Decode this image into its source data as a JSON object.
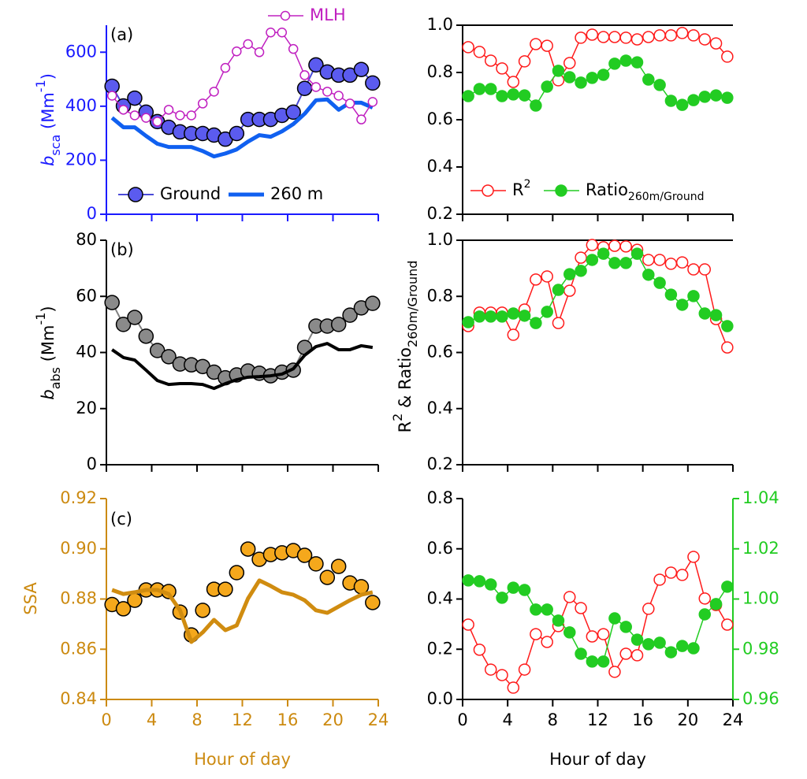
{
  "chart_data": [
    {
      "type": "line",
      "panel": "(a)",
      "axis_color": "#1a1aff",
      "xtick_labels": false,
      "x": [
        0.5,
        1.5,
        2.5,
        3.5,
        4.5,
        5.5,
        6.5,
        7.5,
        8.5,
        9.5,
        10.5,
        11.5,
        12.5,
        13.5,
        14.5,
        15.5,
        16.5,
        17.5,
        18.5,
        19.5,
        20.5,
        21.5,
        22.5,
        23.5
      ],
      "xlim": [
        0,
        24
      ],
      "xticks": [
        0,
        4,
        8,
        12,
        16,
        20,
        24
      ],
      "ylim": [
        0,
        700
      ],
      "yticks": [
        0,
        200,
        400,
        600
      ],
      "y_label": [
        {
          "text": "b",
          "style": "italic"
        },
        {
          "text": "sca",
          "style": "sub"
        },
        {
          "text": " (Mm"
        },
        {
          "text": "-1",
          "style": "sup"
        },
        {
          "text": ")"
        }
      ],
      "series": [
        {
          "name": "Ground",
          "color": "#4a4ad8",
          "marker": "filled",
          "marker_fill": "#5b5bef",
          "marker_edge": "#000000",
          "marker_size": 9,
          "line_width": 2,
          "values": [
            474,
            401,
            430,
            378,
            343,
            322,
            305,
            299,
            299,
            293,
            278,
            299,
            351,
            351,
            351,
            366,
            378,
            466,
            553,
            527,
            515,
            515,
            536,
            486
          ]
        },
        {
          "name": "260 m",
          "color": "#1060f0",
          "marker": null,
          "line_width": 5,
          "values": [
            357,
            322,
            322,
            290,
            261,
            249,
            249,
            249,
            234,
            214,
            225,
            240,
            269,
            293,
            287,
            307,
            334,
            372,
            422,
            425,
            387,
            413,
            413,
            395
          ]
        },
        {
          "name": "MLH",
          "color": "#c020c0",
          "label_color": "#c020c0",
          "marker": "open",
          "marker_fill": "#ffffff",
          "marker_edge": "#c020c0",
          "marker_size": 5.5,
          "line_width": 1.5,
          "values": [
            439,
            387,
            366,
            357,
            343,
            387,
            366,
            366,
            410,
            454,
            542,
            603,
            630,
            600,
            673,
            673,
            612,
            515,
            471,
            454,
            439,
            410,
            351,
            416
          ]
        }
      ]
    },
    {
      "type": "line",
      "panel": "(b)",
      "axis_color": "#000000",
      "xtick_labels": false,
      "x": [
        0.5,
        1.5,
        2.5,
        3.5,
        4.5,
        5.5,
        6.5,
        7.5,
        8.5,
        9.5,
        10.5,
        11.5,
        12.5,
        13.5,
        14.5,
        15.5,
        16.5,
        17.5,
        18.5,
        19.5,
        20.5,
        21.5,
        22.5,
        23.5
      ],
      "xlim": [
        0,
        24
      ],
      "xticks": [
        0,
        4,
        8,
        12,
        16,
        20,
        24
      ],
      "ylim": [
        0,
        80
      ],
      "yticks": [
        0,
        20,
        40,
        60,
        80
      ],
      "y_label": [
        {
          "text": "b",
          "style": "italic"
        },
        {
          "text": "abs",
          "style": "sub"
        },
        {
          "text": " (Mm"
        },
        {
          "text": "-1",
          "style": "sup"
        },
        {
          "text": ")"
        }
      ],
      "series": [
        {
          "color": "#808080",
          "marker": "filled",
          "marker_fill": "#8a8a8a",
          "marker_edge": "#000000",
          "marker_size": 9,
          "line_width": 2,
          "values": [
            57.8,
            50.0,
            52.5,
            45.8,
            40.7,
            38.5,
            35.9,
            35.6,
            35.0,
            33.0,
            31.0,
            32.0,
            33.4,
            32.6,
            31.7,
            33.0,
            33.7,
            41.8,
            49.4,
            49.4,
            50.0,
            53.3,
            55.9,
            57.5
          ]
        },
        {
          "color": "#000000",
          "marker": null,
          "line_width": 4,
          "values": [
            41.0,
            38.2,
            37.3,
            33.7,
            30.0,
            28.6,
            28.9,
            28.9,
            28.6,
            27.2,
            28.9,
            30.3,
            31.2,
            31.4,
            31.7,
            32.3,
            34.2,
            39.0,
            42.1,
            43.2,
            41.0,
            41.0,
            42.4,
            41.8
          ]
        }
      ]
    },
    {
      "type": "line",
      "panel": "(c)",
      "axis_color": "#cc8a10",
      "xtick_labels": true,
      "x_label": "Hour of day",
      "x": [
        0.5,
        1.5,
        2.5,
        3.5,
        4.5,
        5.5,
        6.5,
        7.5,
        8.5,
        9.5,
        10.5,
        11.5,
        12.5,
        13.5,
        14.5,
        15.5,
        16.5,
        17.5,
        18.5,
        19.5,
        20.5,
        21.5,
        22.5,
        23.5
      ],
      "xlim": [
        0,
        24
      ],
      "xticks": [
        0,
        4,
        8,
        12,
        16,
        20,
        24
      ],
      "ylim": [
        0.84,
        0.92
      ],
      "yticks": [
        0.84,
        0.86,
        0.88,
        {
          "value": 0.9,
          "label": "0.90"
        },
        0.92
      ],
      "y_label": [
        {
          "text": "SSA"
        }
      ],
      "series": [
        {
          "color": "#d4900f",
          "marker": "filled",
          "marker_fill": "#f5a81c",
          "marker_edge": "#000000",
          "marker_size": 9,
          "line_width": 0,
          "values": [
            0.8778,
            0.8761,
            0.8795,
            0.8836,
            0.8836,
            0.883,
            0.8748,
            0.8657,
            0.8755,
            0.8839,
            0.8839,
            0.8905,
            0.8999,
            0.8958,
            0.8977,
            0.8984,
            0.8993,
            0.8974,
            0.894,
            0.8886,
            0.893,
            0.8864,
            0.8849,
            0.8786
          ]
        },
        {
          "color": "#d08c10",
          "marker": null,
          "line_width": 5,
          "values": [
            0.8836,
            0.882,
            0.8827,
            0.8836,
            0.8836,
            0.882,
            0.8755,
            0.8629,
            0.8667,
            0.8717,
            0.8676,
            0.8695,
            0.8802,
            0.8874,
            0.8852,
            0.8827,
            0.8817,
            0.8795,
            0.8755,
            0.8745,
            0.877,
            0.8795,
            0.8817,
            0.8827
          ]
        }
      ]
    },
    {
      "type": "line",
      "axis_color": "#000000",
      "xtick_labels": false,
      "top_line": true,
      "x": [
        0.5,
        1.5,
        2.5,
        3.5,
        4.5,
        5.5,
        6.5,
        7.5,
        8.5,
        9.5,
        10.5,
        11.5,
        12.5,
        13.5,
        14.5,
        15.5,
        16.5,
        17.5,
        18.5,
        19.5,
        20.5,
        21.5,
        22.5,
        23.5
      ],
      "xlim": [
        0,
        24
      ],
      "xticks": [
        0,
        4,
        8,
        12,
        16,
        20,
        24
      ],
      "ylim": [
        0.2,
        1.0
      ],
      "yticks": [
        0.2,
        0.4,
        0.6,
        0.8,
        {
          "value": 1,
          "label": "1.0"
        }
      ],
      "series": [
        {
          "name": "R",
          "name_sup": "2",
          "color": "#ff1a1a",
          "marker": "open",
          "marker_fill": "#ffffff",
          "marker_edge": "#ff1a1a",
          "marker_size": 7,
          "line_width": 1.5,
          "values": [
            0.907,
            0.887,
            0.85,
            0.817,
            0.76,
            0.847,
            0.92,
            0.913,
            0.767,
            0.84,
            0.947,
            0.96,
            0.95,
            0.95,
            0.947,
            0.94,
            0.95,
            0.957,
            0.957,
            0.967,
            0.957,
            0.94,
            0.923,
            0.867
          ]
        },
        {
          "name": "Ratio",
          "name_sub": "260m/Ground",
          "color": "#22cc22",
          "marker": "filled",
          "marker_fill": "#22cc22",
          "marker_edge": "#22cc22",
          "marker_size": 7,
          "line_width": 1.5,
          "values": [
            0.7,
            0.73,
            0.73,
            0.7,
            0.707,
            0.703,
            0.66,
            0.74,
            0.807,
            0.78,
            0.757,
            0.777,
            0.79,
            0.837,
            0.85,
            0.843,
            0.77,
            0.747,
            0.68,
            0.663,
            0.683,
            0.697,
            0.703,
            0.693
          ]
        }
      ]
    },
    {
      "type": "line",
      "axis_color": "#000000",
      "xtick_labels": false,
      "top_line": true,
      "x": [
        0.5,
        1.5,
        2.5,
        3.5,
        4.5,
        5.5,
        6.5,
        7.5,
        8.5,
        9.5,
        10.5,
        11.5,
        12.5,
        13.5,
        14.5,
        15.5,
        16.5,
        17.5,
        18.5,
        19.5,
        20.5,
        21.5,
        22.5,
        23.5
      ],
      "xlim": [
        0,
        24
      ],
      "xticks": [
        0,
        4,
        8,
        12,
        16,
        20,
        24
      ],
      "ylim": [
        0.2,
        1.0
      ],
      "yticks": [
        0.2,
        0.4,
        0.6,
        0.8,
        {
          "value": 1,
          "label": "1.0"
        }
      ],
      "y_label": [
        {
          "text": "R"
        },
        {
          "text": "2",
          "style": "sup"
        },
        {
          "text": " & Ratio"
        },
        {
          "text": "260m/Ground",
          "style": "sub"
        }
      ],
      "series": [
        {
          "color": "#ff1a1a",
          "marker": "open",
          "marker_fill": "#ffffff",
          "marker_edge": "#ff1a1a",
          "marker_size": 7,
          "line_width": 1.5,
          "values": [
            0.694,
            0.742,
            0.742,
            0.742,
            0.663,
            0.753,
            0.86,
            0.871,
            0.705,
            0.82,
            0.938,
            0.983,
            0.975,
            0.98,
            0.978,
            0.966,
            0.93,
            0.93,
            0.916,
            0.921,
            0.896,
            0.896,
            0.719,
            0.618
          ]
        },
        {
          "color": "#22cc22",
          "marker": "filled",
          "marker_fill": "#22cc22",
          "marker_edge": "#22cc22",
          "marker_size": 7,
          "line_width": 1.5,
          "values": [
            0.708,
            0.728,
            0.728,
            0.728,
            0.739,
            0.731,
            0.705,
            0.745,
            0.823,
            0.879,
            0.891,
            0.93,
            0.952,
            0.919,
            0.919,
            0.952,
            0.877,
            0.848,
            0.806,
            0.77,
            0.801,
            0.739,
            0.733,
            0.694
          ]
        }
      ]
    },
    {
      "type": "line",
      "axis_color": "#000000",
      "xtick_labels": true,
      "x_label": "Hour of day",
      "y2_color": "#22cc22",
      "x": [
        0.5,
        1.5,
        2.5,
        3.5,
        4.5,
        5.5,
        6.5,
        7.5,
        8.5,
        9.5,
        10.5,
        11.5,
        12.5,
        13.5,
        14.5,
        15.5,
        16.5,
        17.5,
        18.5,
        19.5,
        20.5,
        21.5,
        22.5,
        23.5
      ],
      "xlim": [
        0,
        24
      ],
      "xticks": [
        0,
        4,
        8,
        12,
        16,
        20,
        24
      ],
      "ylim": [
        0,
        0.8
      ],
      "yticks": [
        {
          "value": 0,
          "label": "0.0"
        },
        0.2,
        0.4,
        0.6,
        0.8
      ],
      "y2lim": [
        0.96,
        1.04
      ],
      "y2ticks": [
        0.96,
        0.98,
        {
          "value": 1,
          "label": "1.00"
        },
        1.02,
        1.04
      ],
      "series": [
        {
          "color": "#ff1a1a",
          "marker": "open",
          "marker_fill": "#ffffff",
          "marker_edge": "#ff1a1a",
          "marker_size": 7,
          "line_width": 1.5,
          "values": [
            0.298,
            0.198,
            0.119,
            0.097,
            0.047,
            0.119,
            0.26,
            0.229,
            0.292,
            0.408,
            0.364,
            0.251,
            0.26,
            0.11,
            0.182,
            0.176,
            0.361,
            0.477,
            0.505,
            0.496,
            0.568,
            0.402,
            0.376,
            0.298
          ]
        },
        {
          "axis": "y2",
          "color": "#22cc22",
          "marker": "filled",
          "marker_fill": "#22cc22",
          "marker_edge": "#22cc22",
          "marker_size": 7,
          "line_width": 1.5,
          "values": [
            1.0074,
            1.0071,
            1.0058,
            1.0005,
            1.0045,
            1.0036,
            0.9958,
            0.9958,
            0.9914,
            0.9867,
            0.9782,
            0.9751,
            0.9751,
            0.9923,
            0.9889,
            0.9838,
            0.982,
            0.9826,
            0.9788,
            0.9813,
            0.9804,
            0.9939,
            0.998,
            1.0049
          ]
        }
      ]
    }
  ]
}
